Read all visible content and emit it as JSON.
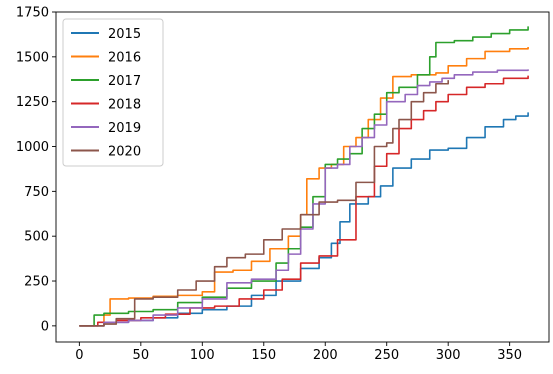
{
  "chart_data": {
    "type": "line",
    "title": "",
    "xlabel": "",
    "ylabel": "",
    "xlim": [
      -19,
      382
    ],
    "ylim": [
      -90,
      1750
    ],
    "xticks": [
      0,
      50,
      100,
      150,
      200,
      250,
      300,
      350
    ],
    "yticks": [
      0,
      250,
      500,
      750,
      1000,
      1250,
      1500,
      1750
    ],
    "grid": false,
    "legend_position": "top-left",
    "series": [
      {
        "name": "2015",
        "color": "#1f77b4",
        "points": [
          [
            0,
            0
          ],
          [
            20,
            20
          ],
          [
            40,
            30
          ],
          [
            60,
            45
          ],
          [
            80,
            70
          ],
          [
            100,
            90
          ],
          [
            120,
            110
          ],
          [
            140,
            170
          ],
          [
            160,
            250
          ],
          [
            180,
            320
          ],
          [
            195,
            380
          ],
          [
            205,
            460
          ],
          [
            212,
            580
          ],
          [
            220,
            680
          ],
          [
            235,
            720
          ],
          [
            245,
            780
          ],
          [
            255,
            880
          ],
          [
            270,
            930
          ],
          [
            285,
            980
          ],
          [
            300,
            990
          ],
          [
            315,
            1050
          ],
          [
            330,
            1110
          ],
          [
            345,
            1150
          ],
          [
            355,
            1170
          ],
          [
            365,
            1190
          ]
        ]
      },
      {
        "name": "2016",
        "color": "#ff7f0e",
        "points": [
          [
            0,
            0
          ],
          [
            20,
            60
          ],
          [
            25,
            150
          ],
          [
            40,
            155
          ],
          [
            60,
            165
          ],
          [
            80,
            170
          ],
          [
            100,
            190
          ],
          [
            110,
            300
          ],
          [
            125,
            310
          ],
          [
            140,
            360
          ],
          [
            155,
            430
          ],
          [
            170,
            500
          ],
          [
            180,
            620
          ],
          [
            185,
            820
          ],
          [
            195,
            880
          ],
          [
            205,
            900
          ],
          [
            215,
            1000
          ],
          [
            225,
            1050
          ],
          [
            235,
            1150
          ],
          [
            245,
            1270
          ],
          [
            255,
            1390
          ],
          [
            270,
            1400
          ],
          [
            290,
            1410
          ],
          [
            300,
            1450
          ],
          [
            315,
            1490
          ],
          [
            330,
            1530
          ],
          [
            350,
            1545
          ],
          [
            365,
            1555
          ]
        ]
      },
      {
        "name": "2017",
        "color": "#2ca02c",
        "points": [
          [
            0,
            0
          ],
          [
            12,
            60
          ],
          [
            20,
            70
          ],
          [
            40,
            80
          ],
          [
            60,
            90
          ],
          [
            80,
            130
          ],
          [
            100,
            160
          ],
          [
            120,
            210
          ],
          [
            140,
            250
          ],
          [
            160,
            350
          ],
          [
            170,
            430
          ],
          [
            180,
            550
          ],
          [
            190,
            720
          ],
          [
            200,
            900
          ],
          [
            210,
            930
          ],
          [
            220,
            960
          ],
          [
            230,
            1100
          ],
          [
            240,
            1180
          ],
          [
            250,
            1300
          ],
          [
            260,
            1330
          ],
          [
            275,
            1400
          ],
          [
            285,
            1500
          ],
          [
            290,
            1580
          ],
          [
            305,
            1590
          ],
          [
            320,
            1610
          ],
          [
            335,
            1630
          ],
          [
            350,
            1650
          ],
          [
            365,
            1670
          ]
        ]
      },
      {
        "name": "2018",
        "color": "#d62728",
        "points": [
          [
            0,
            0
          ],
          [
            15,
            20
          ],
          [
            30,
            30
          ],
          [
            50,
            45
          ],
          [
            70,
            65
          ],
          [
            90,
            100
          ],
          [
            110,
            110
          ],
          [
            130,
            150
          ],
          [
            150,
            200
          ],
          [
            165,
            260
          ],
          [
            180,
            350
          ],
          [
            195,
            390
          ],
          [
            210,
            480
          ],
          [
            225,
            720
          ],
          [
            240,
            890
          ],
          [
            250,
            960
          ],
          [
            260,
            1100
          ],
          [
            270,
            1150
          ],
          [
            280,
            1200
          ],
          [
            290,
            1250
          ],
          [
            300,
            1290
          ],
          [
            315,
            1330
          ],
          [
            330,
            1350
          ],
          [
            345,
            1380
          ],
          [
            365,
            1395
          ]
        ]
      },
      {
        "name": "2019",
        "color": "#9467bd",
        "points": [
          [
            0,
            0
          ],
          [
            20,
            20
          ],
          [
            40,
            30
          ],
          [
            60,
            60
          ],
          [
            80,
            100
          ],
          [
            100,
            150
          ],
          [
            120,
            240
          ],
          [
            140,
            260
          ],
          [
            160,
            310
          ],
          [
            170,
            400
          ],
          [
            180,
            540
          ],
          [
            190,
            680
          ],
          [
            200,
            880
          ],
          [
            210,
            900
          ],
          [
            220,
            1000
          ],
          [
            230,
            1050
          ],
          [
            240,
            1120
          ],
          [
            250,
            1250
          ],
          [
            265,
            1290
          ],
          [
            275,
            1340
          ],
          [
            285,
            1360
          ],
          [
            295,
            1380
          ],
          [
            305,
            1400
          ],
          [
            320,
            1415
          ],
          [
            340,
            1425
          ],
          [
            365,
            1430
          ]
        ]
      },
      {
        "name": "2020",
        "color": "#8c564b",
        "points": [
          [
            0,
            0
          ],
          [
            20,
            10
          ],
          [
            30,
            40
          ],
          [
            45,
            150
          ],
          [
            60,
            160
          ],
          [
            80,
            200
          ],
          [
            95,
            250
          ],
          [
            110,
            330
          ],
          [
            120,
            380
          ],
          [
            135,
            400
          ],
          [
            150,
            480
          ],
          [
            165,
            540
          ],
          [
            180,
            620
          ],
          [
            195,
            690
          ],
          [
            210,
            700
          ],
          [
            225,
            800
          ],
          [
            240,
            1000
          ],
          [
            250,
            1020
          ],
          [
            255,
            1100
          ],
          [
            260,
            1150
          ],
          [
            270,
            1250
          ],
          [
            280,
            1300
          ],
          [
            290,
            1350
          ],
          [
            300,
            1370
          ]
        ]
      }
    ]
  }
}
